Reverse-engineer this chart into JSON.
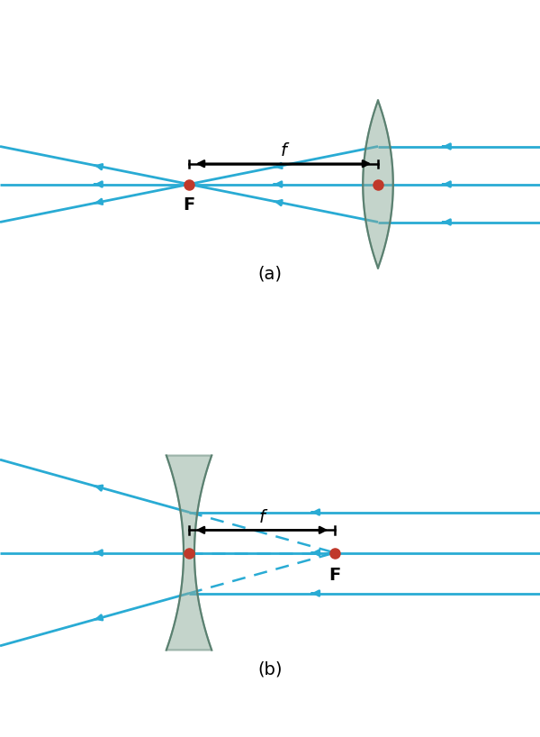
{
  "fig_width": 6.0,
  "fig_height": 8.18,
  "bg_color": "#ffffff",
  "ray_color": "#29ABD4",
  "lens_fill": "#8aab99",
  "lens_edge": "#5a8070",
  "dot_color": "#c0392b",
  "ray_lw": 2.0,
  "dash_lw": 1.8,
  "lens_alpha": 0.5,
  "label_a": "(a)",
  "label_b": "(b)",
  "f_label": "f",
  "F_label": "F"
}
